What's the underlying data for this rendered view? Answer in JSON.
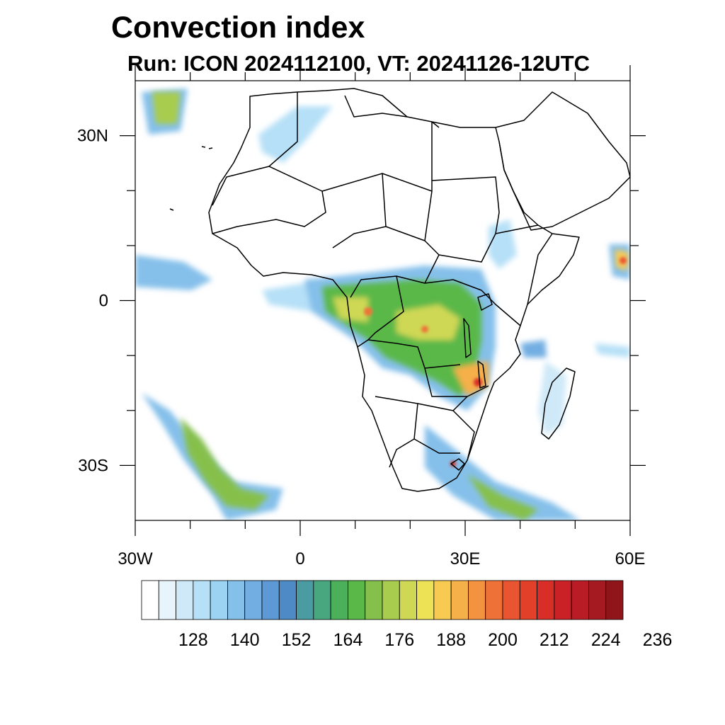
{
  "title": "Convection index",
  "subtitle": "Run: ICON 2024112100,  VT: 20241126-12UTC",
  "map": {
    "lon_range": [
      -30,
      60
    ],
    "lat_range": [
      -40,
      40
    ],
    "x_ticks": [
      {
        "lon": -30,
        "label": "30W"
      },
      {
        "lon": 0,
        "label": "0"
      },
      {
        "lon": 30,
        "label": "30E"
      },
      {
        "lon": 60,
        "label": "60E"
      }
    ],
    "y_ticks": [
      {
        "lat": 30,
        "label": "30N"
      },
      {
        "lat": 0,
        "label": "0"
      },
      {
        "lat": -30,
        "label": "30S"
      }
    ],
    "minor_lon": [
      -20,
      -10,
      10,
      20,
      40,
      50
    ],
    "minor_lat": [
      20,
      10,
      -10,
      -20
    ]
  },
  "colorbar": {
    "colors": [
      "#ffffff",
      "#e8f4fb",
      "#cfe9f8",
      "#b6e0f7",
      "#9cd3f3",
      "#85c0ea",
      "#72aee2",
      "#5d99d4",
      "#4e8bc6",
      "#4a9ba2",
      "#48a77e",
      "#4cb05a",
      "#5ab848",
      "#86c04c",
      "#a8cc4e",
      "#cfd855",
      "#ede156",
      "#f7cb52",
      "#f6b049",
      "#f39340",
      "#ee7238",
      "#e95530",
      "#e34029",
      "#d92e28",
      "#ca2126",
      "#b91c24",
      "#a51a20",
      "#8f151a"
    ],
    "labels": [
      "128",
      "140",
      "152",
      "164",
      "176",
      "188",
      "200",
      "212",
      "224",
      "236"
    ]
  }
}
